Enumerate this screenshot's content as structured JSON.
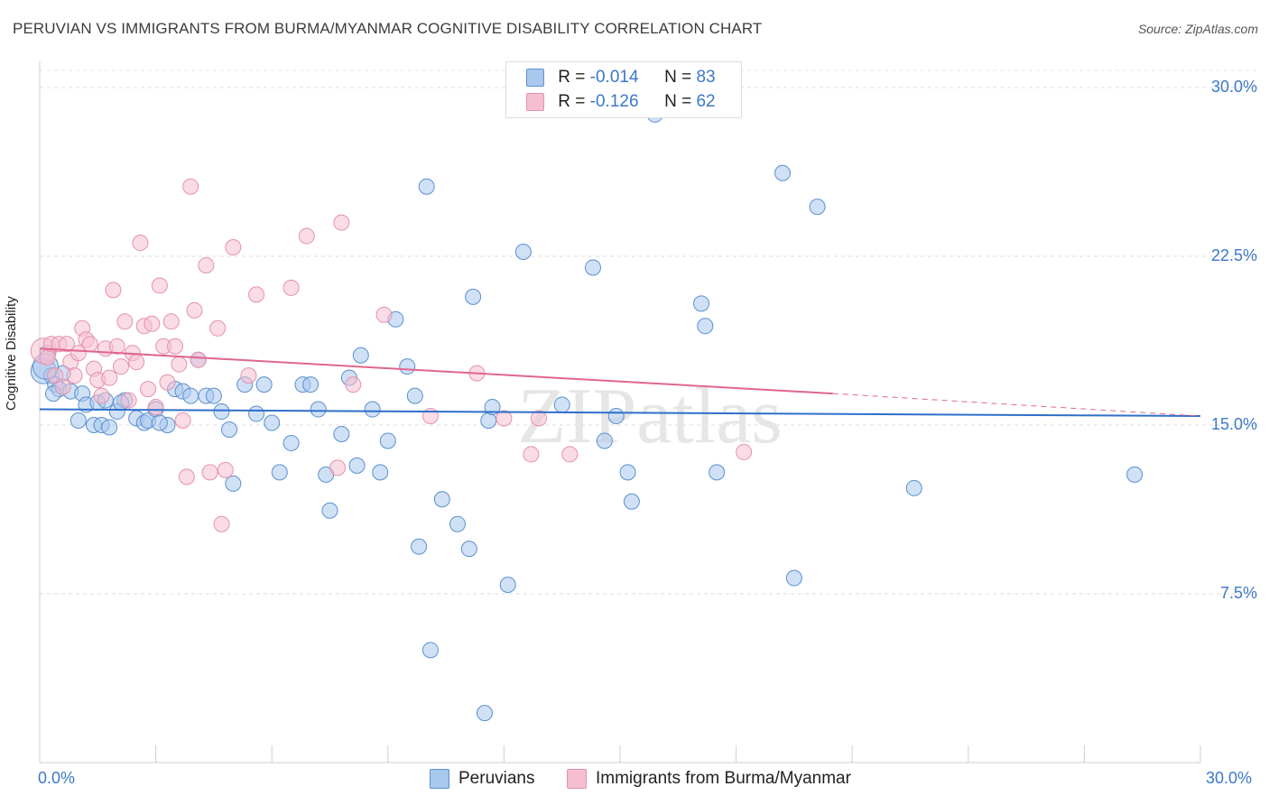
{
  "title": "PERUVIAN VS IMMIGRANTS FROM BURMA/MYANMAR COGNITIVE DISABILITY CORRELATION CHART",
  "source": "Source: ZipAtlas.com",
  "watermark": "ZIPatlas",
  "colors": {
    "blue_fill": "#a9c8ee",
    "blue_stroke": "#5b8fd0",
    "blue_line": "#2f6fc9",
    "pink_fill": "#f5bfd0",
    "pink_stroke": "#e591ad",
    "pink_line": "#e0668e",
    "text_blue": "#3c78c8"
  },
  "legend_top": {
    "rows": [
      {
        "r_label": "R = ",
        "r_value": "-0.014",
        "n_label": "N = ",
        "n_value": "83",
        "series": "blue"
      },
      {
        "r_label": "R = ",
        "r_value": "-0.126",
        "n_label": "N = ",
        "n_value": "62",
        "series": "pink"
      }
    ]
  },
  "legend_bottom": {
    "items": [
      {
        "label": "Peruvians",
        "series": "blue"
      },
      {
        "label": "Immigrants from Burma/Myanmar",
        "series": "pink"
      }
    ]
  },
  "chart_data": {
    "type": "scatter",
    "title": "PERUVIAN VS IMMIGRANTS FROM BURMA/MYANMAR COGNITIVE DISABILITY CORRELATION CHART",
    "xlabel": "",
    "ylabel": "Cognitive Disability",
    "xlim": [
      0,
      30
    ],
    "ylim": [
      0,
      30
    ],
    "x_tick_labels": [
      "0.0%",
      "30.0%"
    ],
    "y_tick_labels": [
      "30.0%",
      "22.5%",
      "15.0%",
      "7.5%"
    ],
    "y_ticks": [
      30,
      22.5,
      15,
      7.5
    ],
    "series": [
      {
        "name": "Peruvians",
        "color": "#a9c8ee",
        "trend": {
          "x": [
            0,
            30
          ],
          "y": [
            15.7,
            15.4
          ],
          "style": "solid"
        },
        "points": [
          [
            0.1,
            17.4
          ],
          [
            0.2,
            18.2
          ],
          [
            0.3,
            17.2
          ],
          [
            0.4,
            16.8
          ],
          [
            0.5,
            16.6
          ],
          [
            0.6,
            17.3
          ],
          [
            0.8,
            16.5
          ],
          [
            1.0,
            15.2
          ],
          [
            1.1,
            16.4
          ],
          [
            1.2,
            15.9
          ],
          [
            1.4,
            15.0
          ],
          [
            1.5,
            16.0
          ],
          [
            1.6,
            15.0
          ],
          [
            1.7,
            16.1
          ],
          [
            1.8,
            14.9
          ],
          [
            2.0,
            15.6
          ],
          [
            2.2,
            16.1
          ],
          [
            2.5,
            15.3
          ],
          [
            2.7,
            15.1
          ],
          [
            2.8,
            15.2
          ],
          [
            3.0,
            15.7
          ],
          [
            3.3,
            15.0
          ],
          [
            3.5,
            16.6
          ],
          [
            3.7,
            16.5
          ],
          [
            3.9,
            16.3
          ],
          [
            4.1,
            17.9
          ],
          [
            4.3,
            16.3
          ],
          [
            4.5,
            16.3
          ],
          [
            4.7,
            15.6
          ],
          [
            4.9,
            14.8
          ],
          [
            5.0,
            12.4
          ],
          [
            5.3,
            16.8
          ],
          [
            5.6,
            15.5
          ],
          [
            5.8,
            16.8
          ],
          [
            6.0,
            15.1
          ],
          [
            6.2,
            12.9
          ],
          [
            6.5,
            14.2
          ],
          [
            6.8,
            16.8
          ],
          [
            7.0,
            16.8
          ],
          [
            7.2,
            15.7
          ],
          [
            7.4,
            12.8
          ],
          [
            7.5,
            11.2
          ],
          [
            7.8,
            14.6
          ],
          [
            8.0,
            17.1
          ],
          [
            8.2,
            13.2
          ],
          [
            8.3,
            18.1
          ],
          [
            8.6,
            15.7
          ],
          [
            8.8,
            12.9
          ],
          [
            9.0,
            14.3
          ],
          [
            9.2,
            19.7
          ],
          [
            9.5,
            17.6
          ],
          [
            9.7,
            16.3
          ],
          [
            9.8,
            9.6
          ],
          [
            10.0,
            25.6
          ],
          [
            10.1,
            5.0
          ],
          [
            10.4,
            11.7
          ],
          [
            10.8,
            10.6
          ],
          [
            11.1,
            9.5
          ],
          [
            11.2,
            20.7
          ],
          [
            11.5,
            2.2
          ],
          [
            11.6,
            15.2
          ],
          [
            11.7,
            15.8
          ],
          [
            12.1,
            7.9
          ],
          [
            12.5,
            22.7
          ],
          [
            13.5,
            15.9
          ],
          [
            14.3,
            22.0
          ],
          [
            14.6,
            14.3
          ],
          [
            14.9,
            15.4
          ],
          [
            15.2,
            12.9
          ],
          [
            15.3,
            11.6
          ],
          [
            15.9,
            28.8
          ],
          [
            17.1,
            20.4
          ],
          [
            17.2,
            19.4
          ],
          [
            17.5,
            12.9
          ],
          [
            19.2,
            26.2
          ],
          [
            19.5,
            8.2
          ],
          [
            20.1,
            24.7
          ],
          [
            22.6,
            12.2
          ],
          [
            28.3,
            12.8
          ],
          [
            0.15,
            17.6
          ],
          [
            0.35,
            16.4
          ],
          [
            2.1,
            16.0
          ],
          [
            3.1,
            15.1
          ]
        ]
      },
      {
        "name": "Immigrants from Burma/Myanmar",
        "color": "#f5bfd0",
        "trend": {
          "x": [
            0,
            20.5
          ],
          "y": [
            18.4,
            16.4
          ],
          "style": "solid"
        },
        "trend_ext": {
          "x": [
            20.5,
            30
          ],
          "y": [
            16.4,
            15.4
          ],
          "style": "dashed"
        },
        "points": [
          [
            0.1,
            18.3
          ],
          [
            0.2,
            18.0
          ],
          [
            0.3,
            18.6
          ],
          [
            0.4,
            17.2
          ],
          [
            0.5,
            18.6
          ],
          [
            0.6,
            16.7
          ],
          [
            0.7,
            18.6
          ],
          [
            0.8,
            17.8
          ],
          [
            0.9,
            17.2
          ],
          [
            1.0,
            18.2
          ],
          [
            1.1,
            19.3
          ],
          [
            1.2,
            18.8
          ],
          [
            1.3,
            18.6
          ],
          [
            1.4,
            17.5
          ],
          [
            1.5,
            17.0
          ],
          [
            1.6,
            16.3
          ],
          [
            1.7,
            18.4
          ],
          [
            1.8,
            17.1
          ],
          [
            1.9,
            21.0
          ],
          [
            2.0,
            18.5
          ],
          [
            2.1,
            17.6
          ],
          [
            2.2,
            19.6
          ],
          [
            2.3,
            16.1
          ],
          [
            2.4,
            18.2
          ],
          [
            2.5,
            17.8
          ],
          [
            2.6,
            23.1
          ],
          [
            2.7,
            19.4
          ],
          [
            2.8,
            16.6
          ],
          [
            2.9,
            19.5
          ],
          [
            3.0,
            15.8
          ],
          [
            3.1,
            21.2
          ],
          [
            3.2,
            18.5
          ],
          [
            3.3,
            16.9
          ],
          [
            3.4,
            19.6
          ],
          [
            3.5,
            18.5
          ],
          [
            3.6,
            17.7
          ],
          [
            3.7,
            15.2
          ],
          [
            3.8,
            12.7
          ],
          [
            3.9,
            25.6
          ],
          [
            4.0,
            20.1
          ],
          [
            4.1,
            17.9
          ],
          [
            4.3,
            22.1
          ],
          [
            4.4,
            12.9
          ],
          [
            4.6,
            19.3
          ],
          [
            4.7,
            10.6
          ],
          [
            4.8,
            13.0
          ],
          [
            5.0,
            22.9
          ],
          [
            5.4,
            17.2
          ],
          [
            5.6,
            20.8
          ],
          [
            6.5,
            21.1
          ],
          [
            6.9,
            23.4
          ],
          [
            7.7,
            13.1
          ],
          [
            7.8,
            24.0
          ],
          [
            8.1,
            16.8
          ],
          [
            8.9,
            19.9
          ],
          [
            10.1,
            15.4
          ],
          [
            11.3,
            17.3
          ],
          [
            12.0,
            15.3
          ],
          [
            12.7,
            13.7
          ],
          [
            13.7,
            13.7
          ],
          [
            12.9,
            15.3
          ],
          [
            18.2,
            13.8
          ]
        ]
      }
    ]
  }
}
